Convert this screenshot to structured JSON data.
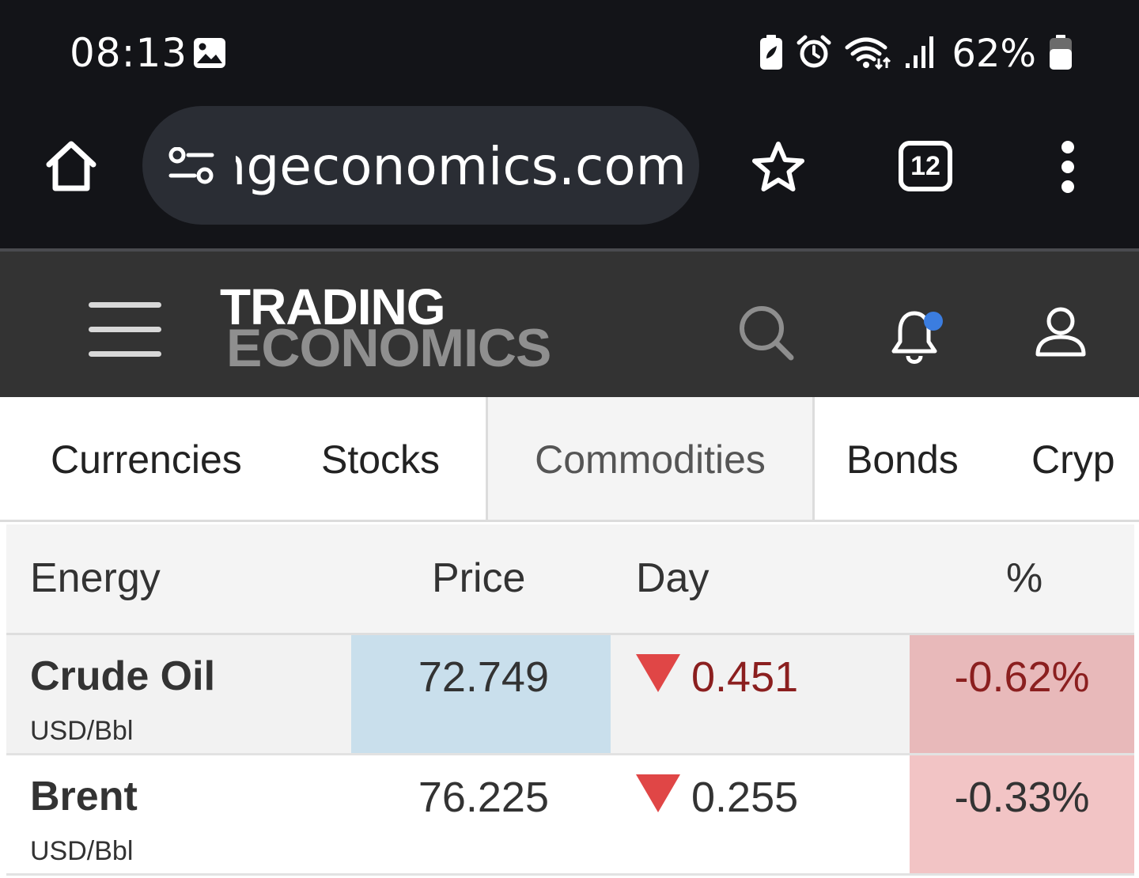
{
  "status_bar": {
    "time": "08:13",
    "battery_percent": "62%",
    "icons": [
      "gallery-icon",
      "battery-saver-icon",
      "alarm-icon",
      "wifi-icon",
      "signal-icon",
      "battery-icon"
    ]
  },
  "browser": {
    "url_text": "ngeconomics.com",
    "tab_count": "12",
    "icons": [
      "home-icon",
      "site-settings-icon",
      "star-icon",
      "tabs-icon",
      "more-vert-icon"
    ]
  },
  "site_header": {
    "logo_line1": "TRADING",
    "logo_line2": "ECONOMICS",
    "icons": [
      "hamburger-icon",
      "search-icon",
      "bell-icon",
      "user-icon"
    ],
    "notification_dot_color": "#3b7de0"
  },
  "category_tabs": [
    {
      "label": "Currencies"
    },
    {
      "label": "Stocks"
    },
    {
      "label": "Commodities",
      "active": true
    },
    {
      "label": "Bonds"
    },
    {
      "label": "Cryp"
    }
  ],
  "table": {
    "headers": {
      "name": "Energy",
      "price": "Price",
      "day": "Day",
      "pct": "%"
    },
    "rows": [
      {
        "name": "Crude Oil",
        "unit": "USD/Bbl",
        "price": "72.749",
        "day": "0.451",
        "pct": "-0.62%",
        "direction": "down"
      },
      {
        "name": "Brent",
        "unit": "USD/Bbl",
        "price": "76.225",
        "day": "0.255",
        "pct": "-0.33%",
        "direction": "down"
      }
    ]
  },
  "colors": {
    "status_bg": "#131418",
    "header_bg": "#333333",
    "price_highlight": "#c9dfec",
    "negative_bg_1": "#e8b9ba",
    "negative_bg_2": "#f2c4c5",
    "down_arrow": "#e04646",
    "negative_text": "#8b1f1f"
  }
}
